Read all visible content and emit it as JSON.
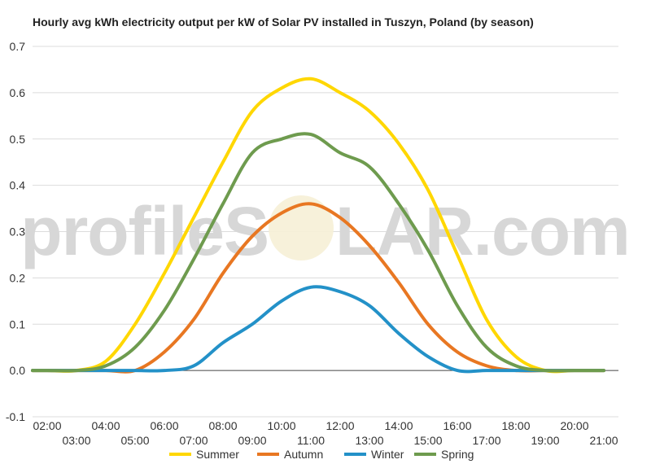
{
  "watermark": {
    "left": "profileS",
    "right": "LAR.com"
  },
  "chart_data": {
    "type": "line",
    "title": "Hourly avg kWh electricity output per kW of Solar PV installed in Tuszyn, Poland (by season)",
    "xlabel": "",
    "ylabel": "",
    "ylim": [
      -0.1,
      0.7
    ],
    "yticks": [
      -0.1,
      0.0,
      0.1,
      0.2,
      0.3,
      0.4,
      0.5,
      0.6,
      0.7
    ],
    "ytick_labels": [
      "-0.1",
      "0.0",
      "0.1",
      "0.2",
      "0.3",
      "0.4",
      "0.5",
      "0.6",
      "0.7"
    ],
    "xlim": [
      1.5,
      21.5
    ],
    "xticks_top": [
      2,
      4,
      6,
      8,
      10,
      12,
      14,
      16,
      18,
      20
    ],
    "xticks_top_labels": [
      "02:00",
      "04:00",
      "06:00",
      "08:00",
      "10:00",
      "12:00",
      "14:00",
      "16:00",
      "18:00",
      "20:00"
    ],
    "xticks_bottom": [
      3,
      5,
      7,
      9,
      11,
      13,
      15,
      17,
      19,
      21
    ],
    "xticks_bottom_labels": [
      "03:00",
      "05:00",
      "07:00",
      "09:00",
      "11:00",
      "13:00",
      "15:00",
      "17:00",
      "19:00",
      "21:00"
    ],
    "grid": true,
    "legend_position": "bottom",
    "x": [
      1.5,
      2,
      3,
      4,
      5,
      6,
      7,
      8,
      9,
      10,
      11,
      12,
      13,
      14,
      15,
      16,
      17,
      18,
      19,
      20,
      21
    ],
    "series": [
      {
        "name": "Summer",
        "color": "#FFD700",
        "values": [
          0.0,
          0.0,
          0.0,
          0.02,
          0.1,
          0.21,
          0.33,
          0.45,
          0.56,
          0.61,
          0.63,
          0.6,
          0.56,
          0.49,
          0.39,
          0.25,
          0.11,
          0.03,
          0.0,
          0.0,
          0.0
        ]
      },
      {
        "name": "Autumn",
        "color": "#E87722",
        "values": [
          0.0,
          0.0,
          0.0,
          0.0,
          0.0,
          0.04,
          0.11,
          0.21,
          0.29,
          0.34,
          0.36,
          0.33,
          0.27,
          0.19,
          0.1,
          0.04,
          0.01,
          0.0,
          0.0,
          0.0,
          0.0
        ]
      },
      {
        "name": "Winter",
        "color": "#2391C8",
        "values": [
          0.0,
          0.0,
          0.0,
          0.0,
          0.0,
          0.0,
          0.01,
          0.06,
          0.1,
          0.15,
          0.18,
          0.17,
          0.14,
          0.08,
          0.03,
          0.0,
          0.0,
          0.0,
          0.0,
          0.0,
          0.0
        ]
      },
      {
        "name": "Spring",
        "color": "#6E9B4E",
        "values": [
          0.0,
          0.0,
          0.0,
          0.01,
          0.05,
          0.13,
          0.24,
          0.36,
          0.47,
          0.5,
          0.51,
          0.47,
          0.44,
          0.36,
          0.26,
          0.14,
          0.05,
          0.01,
          0.0,
          0.0,
          0.0
        ]
      }
    ]
  }
}
